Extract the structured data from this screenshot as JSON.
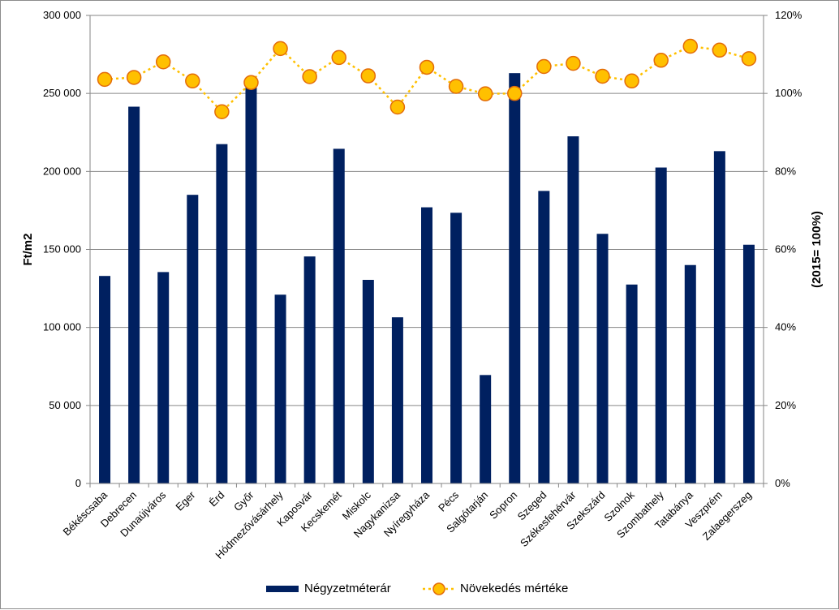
{
  "chart_data": {
    "type": "bar",
    "categories": [
      "Békéscsaba",
      "Debrecen",
      "Dunaújváros",
      "Eger",
      "Érd",
      "Győr",
      "Hódmezővásárhely",
      "Kaposvár",
      "Kecskemét",
      "Miskolc",
      "Nagykanizsa",
      "Nyíregyháza",
      "Pécs",
      "Salgótarján",
      "Sopron",
      "Szeged",
      "Székesfehérvár",
      "Szekszárd",
      "Szolnok",
      "Szombathely",
      "Tatabánya",
      "Veszprém",
      "Zalaegerszeg"
    ],
    "series": [
      {
        "name": "Négyzetméterár",
        "type": "bar",
        "axis": "left",
        "color": "#002060",
        "values": [
          133000,
          241500,
          135500,
          185000,
          217500,
          256000,
          121000,
          145500,
          214500,
          130500,
          106500,
          177000,
          173500,
          69500,
          263000,
          187500,
          222500,
          160000,
          127500,
          202500,
          140000,
          213000,
          153000
        ]
      },
      {
        "name": "Növekedés mértéke",
        "type": "line",
        "axis": "right",
        "color": "#FFC000",
        "marker_edge": "#E36C09",
        "values": [
          1.036,
          1.041,
          1.081,
          1.032,
          0.953,
          1.028,
          1.115,
          1.043,
          1.092,
          1.045,
          0.965,
          1.067,
          1.018,
          0.999,
          1.0,
          1.069,
          1.077,
          1.044,
          1.032,
          1.085,
          1.121,
          1.111,
          1.089
        ]
      }
    ],
    "y_left": {
      "label": "Ft/m2",
      "ylim": [
        0,
        300000
      ],
      "ticks": [
        0,
        50000,
        100000,
        150000,
        200000,
        250000,
        300000
      ],
      "tick_labels": [
        "0",
        "50 000",
        "100 000",
        "150 000",
        "200 000",
        "250 000",
        "300 000"
      ]
    },
    "y_right": {
      "label": "(2015= 100%)",
      "ylim": [
        0,
        1.2
      ],
      "ticks": [
        0,
        0.2,
        0.4,
        0.6,
        0.8,
        1.0,
        1.2
      ],
      "tick_labels": [
        "0%",
        "20%",
        "40%",
        "60%",
        "80%",
        "100%",
        "120%"
      ]
    },
    "grid": true,
    "legend_position": "bottom"
  }
}
